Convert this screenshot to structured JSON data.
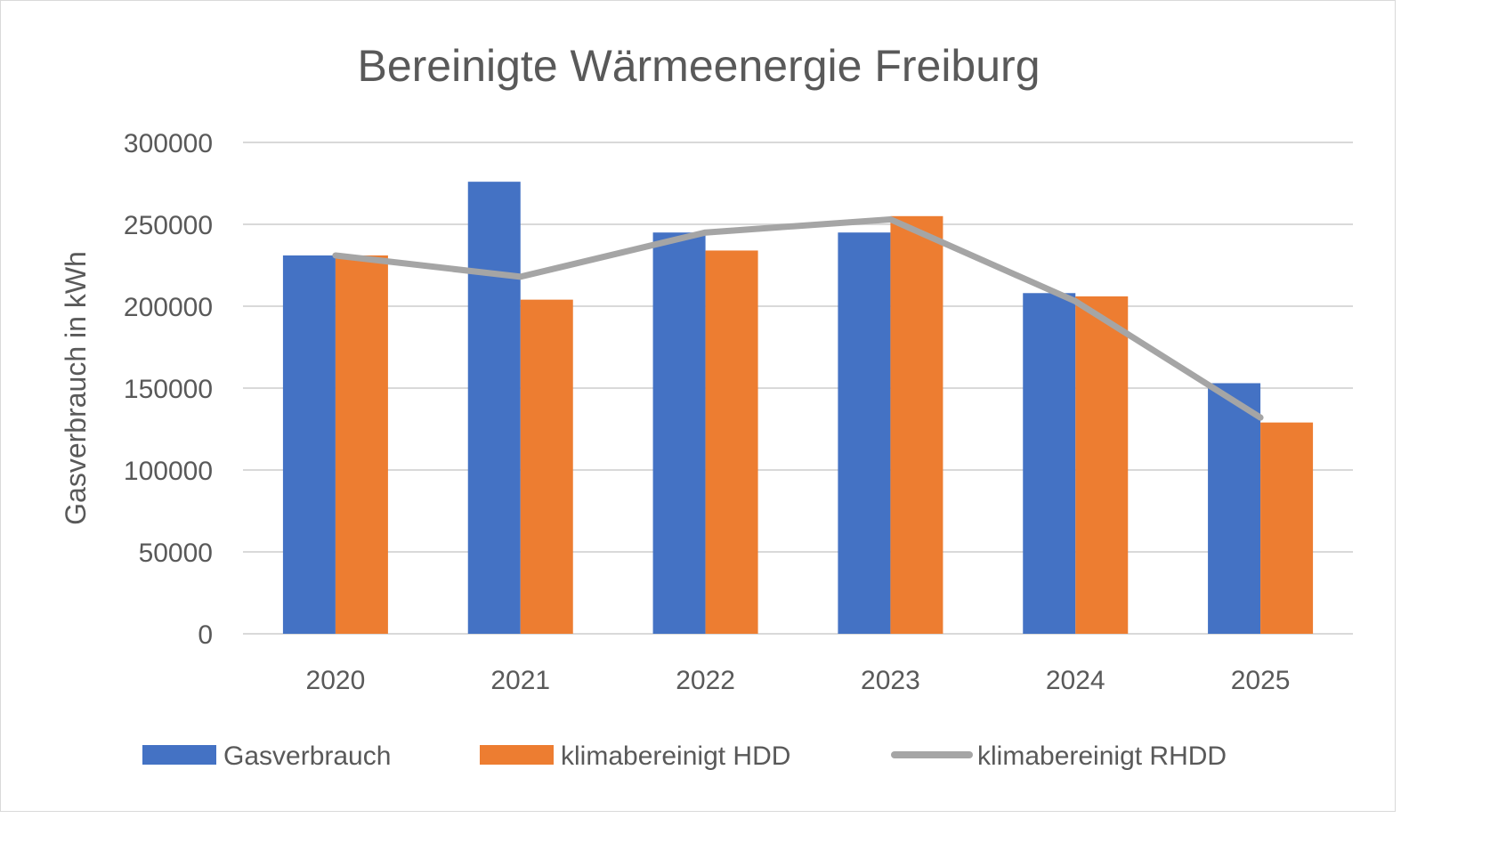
{
  "chart_data": {
    "type": "bar",
    "title": "Bereinigte Wärmeenergie Freiburg",
    "xlabel": "",
    "ylabel": "Gasverbrauch in kWh",
    "categories": [
      "2020",
      "2021",
      "2022",
      "2023",
      "2024",
      "2025"
    ],
    "ylim": [
      0,
      300000
    ],
    "yticks": [
      "0",
      "50000",
      "100000",
      "150000",
      "200000",
      "250000",
      "300000"
    ],
    "grid": true,
    "legend_position": "bottom",
    "series": [
      {
        "name": "Gasverbrauch",
        "type": "bar",
        "color": "#4472C4",
        "values": [
          231000,
          276000,
          245000,
          245000,
          208000,
          153000
        ]
      },
      {
        "name": "klimabereinigt HDD",
        "type": "bar",
        "color": "#ED7D31",
        "values": [
          231000,
          204000,
          234000,
          255000,
          206000,
          129000
        ]
      },
      {
        "name": "klimabereinigt RHDD",
        "type": "line",
        "color": "#A5A5A5",
        "values": [
          231000,
          218000,
          245000,
          253000,
          203000,
          132000
        ]
      }
    ]
  }
}
